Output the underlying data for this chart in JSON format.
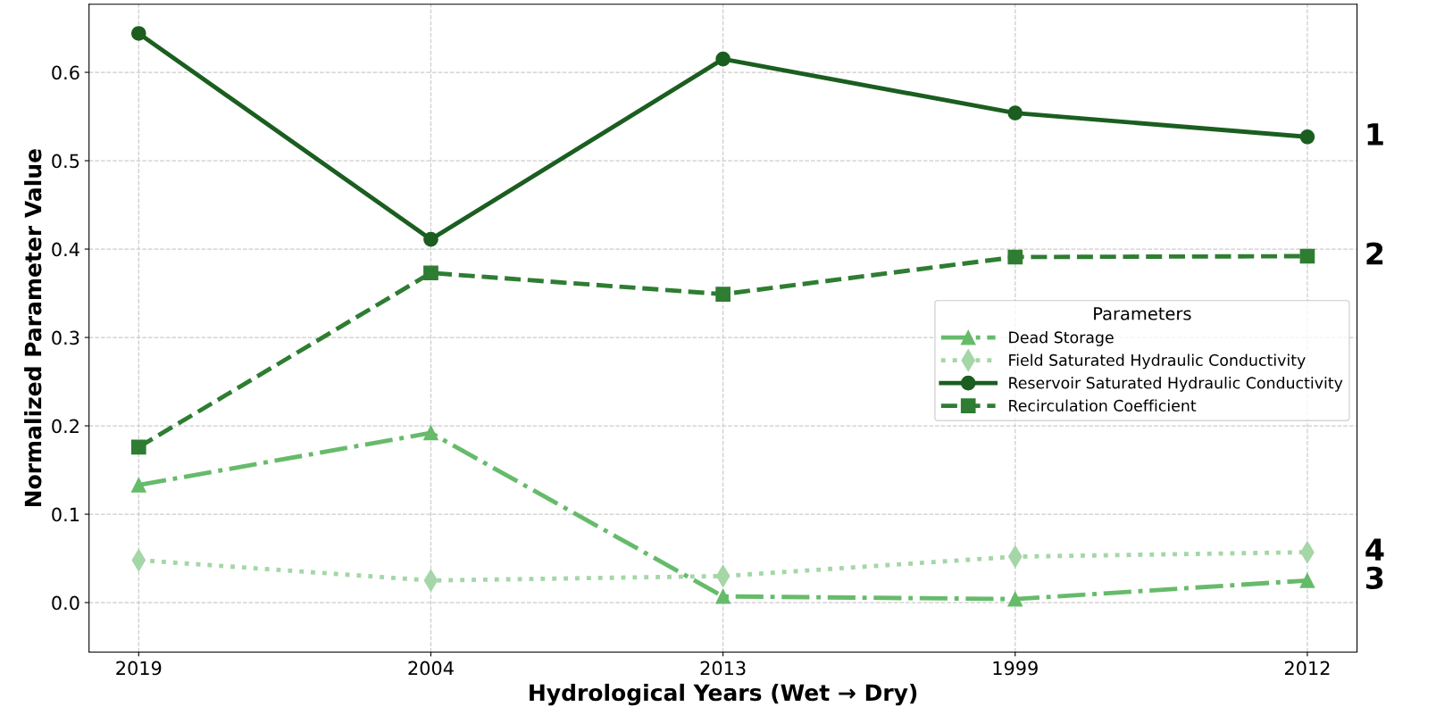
{
  "chart_data": {
    "type": "line",
    "xlabel": "Hydrological Years (Wet → Dry)",
    "ylabel": "Normalized Parameter Value",
    "categories": [
      "2019",
      "2004",
      "2013",
      "1999",
      "2012"
    ],
    "series": [
      {
        "name": "Dead Storage",
        "color": "#66bb6a",
        "marker": "triangle",
        "line_style": "dashdot",
        "values": [
          0.133,
          0.192,
          0.007,
          0.004,
          0.025
        ]
      },
      {
        "name": "Field Saturated Hydraulic Conductivity",
        "color": "#a5d6a7",
        "marker": "diamond",
        "line_style": "dotted",
        "values": [
          0.048,
          0.025,
          0.03,
          0.052,
          0.057
        ]
      },
      {
        "name": "Reservoir Saturated Hydraulic Conductivity",
        "color": "#1b5e20",
        "marker": "circle",
        "line_style": "solid",
        "values": [
          0.644,
          0.411,
          0.615,
          0.554,
          0.527
        ]
      },
      {
        "name": "Recirculation Coefficient",
        "color": "#2e7d32",
        "marker": "square",
        "line_style": "dashed",
        "values": [
          0.176,
          0.373,
          0.349,
          0.391,
          0.392
        ]
      }
    ],
    "annotations": [
      {
        "text": "1",
        "x": "2012",
        "y": 0.527
      },
      {
        "text": "2",
        "x": "2012",
        "y": 0.392
      },
      {
        "text": "4",
        "x": "2012",
        "y": 0.057
      },
      {
        "text": "3",
        "x": "2012",
        "y": 0.025
      }
    ],
    "legend_title": "Parameters",
    "legend": "center right",
    "ylim": [
      -0.056,
      0.677
    ],
    "yticks": [
      {
        "value": 0,
        "label": "0.0"
      },
      0.1,
      0.2,
      0.3,
      0.4,
      0.5,
      0.6
    ],
    "grid": true
  }
}
